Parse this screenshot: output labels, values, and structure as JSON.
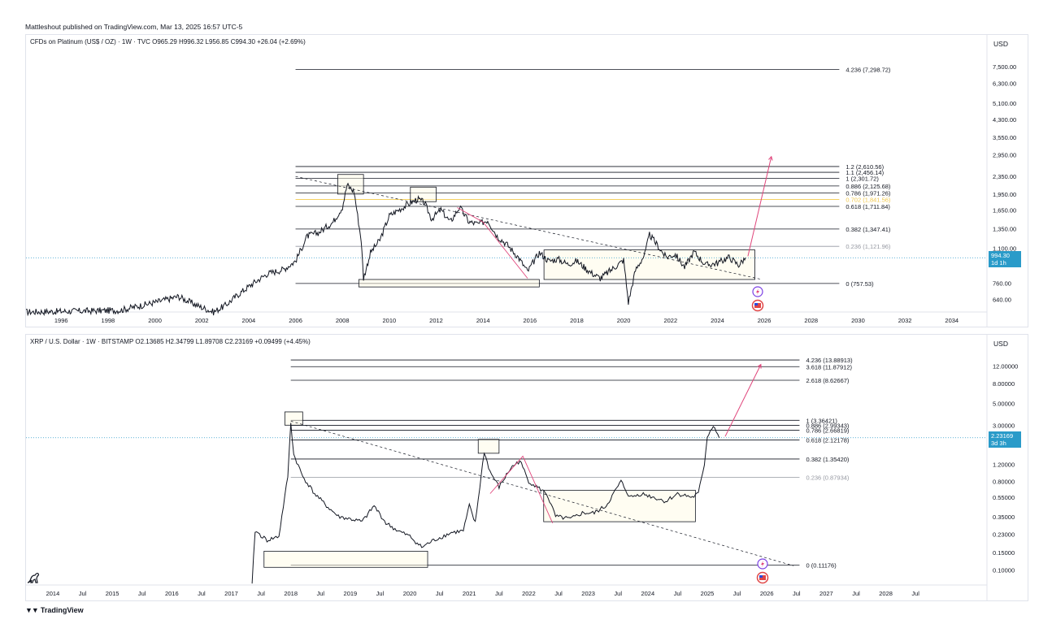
{
  "publisher": "Mattleshout published on TradingView.com, Mar 13, 2025 16:57 UTC-5",
  "footer_brand": "TradingView",
  "chart_data": [
    {
      "type": "candlestick",
      "symbol_line": {
        "name": "CFDs on Platinum (US$ / OZ) · 1W · TVC",
        "o_label": "O",
        "o": "965.29",
        "h_label": "H",
        "h": "996.32",
        "l_label": "L",
        "l": "956.85",
        "c_label": "C",
        "c": "994.30",
        "change": "+26.04 (+2.69%)"
      },
      "currency": "USD",
      "scale": "log",
      "ylim": [
        560,
        9000
      ],
      "xlim": [
        1994.5,
        2035.5
      ],
      "y_ticks": [
        640,
        760,
        1100,
        1350,
        1650,
        1950,
        2350,
        2950,
        3550,
        4300,
        5100,
        6300,
        7500
      ],
      "y_tick_labels": [
        "640.00",
        "760.00",
        "1,100.00",
        "1,350.00",
        "1,650.00",
        "1,950.00",
        "2,350.00",
        "2,950.00",
        "3,550.00",
        "4,300.00",
        "5,100.00",
        "6,300.00",
        "7,500.00"
      ],
      "x_ticks": [
        "1996",
        "1998",
        "2000",
        "2002",
        "2004",
        "2006",
        "2008",
        "2010",
        "2012",
        "2014",
        "2016",
        "2018",
        "2020",
        "2022",
        "2024",
        "2026",
        "2028",
        "2030",
        "2032",
        "2034"
      ],
      "last_price": {
        "value": "994.30",
        "countdown": "1d 1h",
        "y": 994.3
      },
      "fib_levels": [
        {
          "ratio": "4.236",
          "label": "4.236 (7,298.72)",
          "value": 7298.72,
          "color": "#131722"
        },
        {
          "ratio": "1.2",
          "label": "1.2 (2,610.56)",
          "value": 2610.56,
          "color": "#131722"
        },
        {
          "ratio": "1.1",
          "label": "1.1 (2,456.14)",
          "value": 2456.14,
          "color": "#131722"
        },
        {
          "ratio": "1",
          "label": "1 (2,301.72)",
          "value": 2301.72,
          "color": "#131722"
        },
        {
          "ratio": "0.886",
          "label": "0.886 (2,125.68)",
          "value": 2125.68,
          "color": "#131722"
        },
        {
          "ratio": "0.786",
          "label": "0.786 (1,971.26)",
          "value": 1971.26,
          "color": "#131722"
        },
        {
          "ratio": "0.702",
          "label": "0.702 (1,841.56)",
          "value": 1841.56,
          "color": "#f2c94c"
        },
        {
          "ratio": "0.618",
          "label": "0.618 (1,711.84)",
          "value": 1711.84,
          "color": "#131722"
        },
        {
          "ratio": "0.382",
          "label": "0.382 (1,347.41)",
          "value": 1347.41,
          "color": "#131722"
        },
        {
          "ratio": "0.236",
          "label": "0.236 (1,121.96)",
          "value": 1121.96,
          "color": "#9598a1"
        },
        {
          "ratio": "0",
          "label": "0 (757.53)",
          "value": 757.53,
          "color": "#131722"
        }
      ],
      "price_path": [
        [
          1994.5,
          560
        ],
        [
          1998.5,
          570
        ],
        [
          2000.0,
          620
        ],
        [
          2001.0,
          660
        ],
        [
          2001.8,
          600
        ],
        [
          2002.5,
          560
        ],
        [
          2003.0,
          600
        ],
        [
          2003.6,
          680
        ],
        [
          2004.2,
          760
        ],
        [
          2004.8,
          840
        ],
        [
          2005.5,
          880
        ],
        [
          2006.0,
          960
        ],
        [
          2006.5,
          1250
        ],
        [
          2007.0,
          1300
        ],
        [
          2007.6,
          1450
        ],
        [
          2008.0,
          1700
        ],
        [
          2008.2,
          2150
        ],
        [
          2008.5,
          2000
        ],
        [
          2008.8,
          1200
        ],
        [
          2008.9,
          800
        ],
        [
          2009.2,
          1050
        ],
        [
          2009.6,
          1200
        ],
        [
          2010.0,
          1550
        ],
        [
          2010.4,
          1650
        ],
        [
          2010.8,
          1750
        ],
        [
          2011.2,
          1850
        ],
        [
          2011.5,
          1780
        ],
        [
          2011.8,
          1500
        ],
        [
          2012.2,
          1650
        ],
        [
          2012.6,
          1450
        ],
        [
          2013.0,
          1700
        ],
        [
          2013.4,
          1450
        ],
        [
          2013.8,
          1420
        ],
        [
          2014.2,
          1480
        ],
        [
          2014.6,
          1250
        ],
        [
          2015.0,
          1150
        ],
        [
          2015.5,
          1000
        ],
        [
          2015.9,
          860
        ],
        [
          2016.4,
          1050
        ],
        [
          2016.8,
          960
        ],
        [
          2017.2,
          980
        ],
        [
          2017.6,
          930
        ],
        [
          2018.0,
          960
        ],
        [
          2018.6,
          850
        ],
        [
          2019.0,
          800
        ],
        [
          2019.5,
          880
        ],
        [
          2020.0,
          970
        ],
        [
          2020.2,
          620
        ],
        [
          2020.5,
          870
        ],
        [
          2020.9,
          1030
        ],
        [
          2021.1,
          1270
        ],
        [
          2021.4,
          1150
        ],
        [
          2021.8,
          1000
        ],
        [
          2022.2,
          1030
        ],
        [
          2022.6,
          900
        ],
        [
          2023.0,
          1060
        ],
        [
          2023.5,
          920
        ],
        [
          2024.0,
          940
        ],
        [
          2024.5,
          1000
        ],
        [
          2024.9,
          920
        ],
        [
          2025.2,
          994.3
        ]
      ],
      "boxes": [
        {
          "x0": 2007.8,
          "x1": 2008.9,
          "y0": 1950,
          "y1": 2400
        },
        {
          "x0": 2010.9,
          "x1": 2012.0,
          "y0": 1800,
          "y1": 2100
        },
        {
          "x0": 2008.7,
          "x1": 2016.4,
          "y0": 730,
          "y1": 790
        },
        {
          "x0": 2016.6,
          "x1": 2025.6,
          "y0": 790,
          "y1": 1080
        }
      ],
      "trendline": {
        "x0": 2006.0,
        "x1": 2025.9,
        "y0": 2350,
        "y1": 790
      },
      "pink_path": [
        [
          2012.9,
          1690
        ],
        [
          2014.0,
          1450
        ],
        [
          2015.9,
          800
        ]
      ],
      "projection": {
        "x0": 2025.3,
        "y0": 1010,
        "x1": 2026.3,
        "y1": 2900
      }
    },
    {
      "type": "candlestick",
      "symbol_line": {
        "name": "XRP / U.S. Dollar · 1W · BITSTAMP",
        "o_label": "O",
        "o": "2.13685",
        "h_label": "H",
        "h": "2.34799",
        "l_label": "L",
        "l": "1.89708",
        "c_label": "C",
        "c": "2.23169",
        "change": "+0.09499 (+4.45%)"
      },
      "currency": "USD",
      "scale": "log",
      "ylim": [
        0.07,
        20
      ],
      "xlim": [
        2013.55,
        2029.7
      ],
      "y_ticks": [
        0.1,
        0.15,
        0.23,
        0.35,
        0.55,
        0.8,
        1.2,
        2.0,
        3.0,
        5.0,
        8.0,
        12.0
      ],
      "y_tick_labels": [
        "0.10000",
        "0.15000",
        "0.23000",
        "0.35000",
        "0.55000",
        "0.80000",
        "1.20000",
        "2.00000",
        "3.00000",
        "5.00000",
        "8.00000",
        "12.00000"
      ],
      "x_ticks": [
        "2014",
        "Jul",
        "2015",
        "Jul",
        "2016",
        "Jul",
        "2017",
        "Jul",
        "2018",
        "Jul",
        "2019",
        "Jul",
        "2020",
        "Jul",
        "2021",
        "Jul",
        "2022",
        "Jul",
        "2023",
        "Jul",
        "2024",
        "Jul",
        "2025",
        "Jul",
        "2026",
        "Jul",
        "2027",
        "Jul",
        "2028",
        "Jul"
      ],
      "last_price": {
        "value": "2.23169",
        "countdown": "3d 3h",
        "y": 2.23169
      },
      "fib_levels": [
        {
          "ratio": "4.236",
          "label": "4.236 (13.88913)",
          "value": 13.88913,
          "color": "#131722"
        },
        {
          "ratio": "3.618",
          "label": "3.618 (11.87912)",
          "value": 11.87912,
          "color": "#131722"
        },
        {
          "ratio": "2.618",
          "label": "2.618 (8.62667)",
          "value": 8.62667,
          "color": "#131722"
        },
        {
          "ratio": "1",
          "label": "1 (3.36421)",
          "value": 3.36421,
          "color": "#131722"
        },
        {
          "ratio": "0.886",
          "label": "0.886 (2.99343)",
          "value": 2.99343,
          "color": "#131722"
        },
        {
          "ratio": "0.786",
          "label": "0.786 (2.66819)",
          "value": 2.66819,
          "color": "#131722"
        },
        {
          "ratio": "0.618",
          "label": "0.618 (2.12178)",
          "value": 2.12178,
          "color": "#131722"
        },
        {
          "ratio": "0.382",
          "label": "0.382 (1.35420)",
          "value": 1.3542,
          "color": "#131722"
        },
        {
          "ratio": "0.236",
          "label": "0.236 (0.87934)",
          "value": 0.87934,
          "color": "#9598a1"
        },
        {
          "ratio": "0",
          "label": "0 (0.11176)",
          "value": 0.11176,
          "color": "#131722"
        }
      ],
      "price_path": [
        [
          2017.35,
          0.07
        ],
        [
          2017.4,
          0.25
        ],
        [
          2017.6,
          0.2
        ],
        [
          2017.8,
          0.22
        ],
        [
          2017.95,
          0.9
        ],
        [
          2018.0,
          3.2
        ],
        [
          2018.05,
          1.5
        ],
        [
          2018.2,
          0.9
        ],
        [
          2018.4,
          0.6
        ],
        [
          2018.6,
          0.45
        ],
        [
          2018.8,
          0.35
        ],
        [
          2019.0,
          0.33
        ],
        [
          2019.2,
          0.31
        ],
        [
          2019.4,
          0.45
        ],
        [
          2019.6,
          0.3
        ],
        [
          2019.8,
          0.25
        ],
        [
          2020.0,
          0.22
        ],
        [
          2020.2,
          0.17
        ],
        [
          2020.4,
          0.2
        ],
        [
          2020.7,
          0.24
        ],
        [
          2020.9,
          0.25
        ],
        [
          2021.0,
          0.45
        ],
        [
          2021.1,
          0.3
        ],
        [
          2021.25,
          1.6
        ],
        [
          2021.35,
          1.0
        ],
        [
          2021.5,
          0.7
        ],
        [
          2021.7,
          1.1
        ],
        [
          2021.85,
          1.3
        ],
        [
          2022.0,
          0.8
        ],
        [
          2022.3,
          0.6
        ],
        [
          2022.45,
          0.35
        ],
        [
          2022.7,
          0.33
        ],
        [
          2022.9,
          0.38
        ],
        [
          2023.1,
          0.38
        ],
        [
          2023.3,
          0.45
        ],
        [
          2023.55,
          0.8
        ],
        [
          2023.7,
          0.55
        ],
        [
          2023.9,
          0.6
        ],
        [
          2024.1,
          0.55
        ],
        [
          2024.3,
          0.5
        ],
        [
          2024.5,
          0.6
        ],
        [
          2024.75,
          0.55
        ],
        [
          2024.85,
          0.6
        ],
        [
          2024.95,
          1.2
        ],
        [
          2025.0,
          2.3
        ],
        [
          2025.1,
          3.0
        ],
        [
          2025.2,
          2.23169
        ]
      ],
      "boxes": [
        {
          "x0": 2017.9,
          "x1": 2018.2,
          "y0": 3.0,
          "y1": 4.1
        },
        {
          "x0": 2021.15,
          "x1": 2021.5,
          "y0": 1.55,
          "y1": 2.15
        },
        {
          "x0": 2017.55,
          "x1": 2020.3,
          "y0": 0.106,
          "y1": 0.155
        },
        {
          "x0": 2022.25,
          "x1": 2024.8,
          "y0": 0.31,
          "y1": 0.65
        }
      ],
      "trendline": {
        "x0": 2018.0,
        "x1": 2026.45,
        "y0": 3.3,
        "y1": 0.11
      },
      "pink_path": [
        [
          2021.35,
          0.6
        ],
        [
          2021.9,
          1.45
        ],
        [
          2022.4,
          0.3
        ]
      ],
      "projection": {
        "x0": 2025.3,
        "y0": 2.3,
        "x1": 2025.9,
        "y1": 12.5
      }
    }
  ],
  "icons": [
    "bolt-badge-icon",
    "us-flag-badge-icon",
    "tradingview-dino-icon",
    "tradingview-logo-icon"
  ]
}
